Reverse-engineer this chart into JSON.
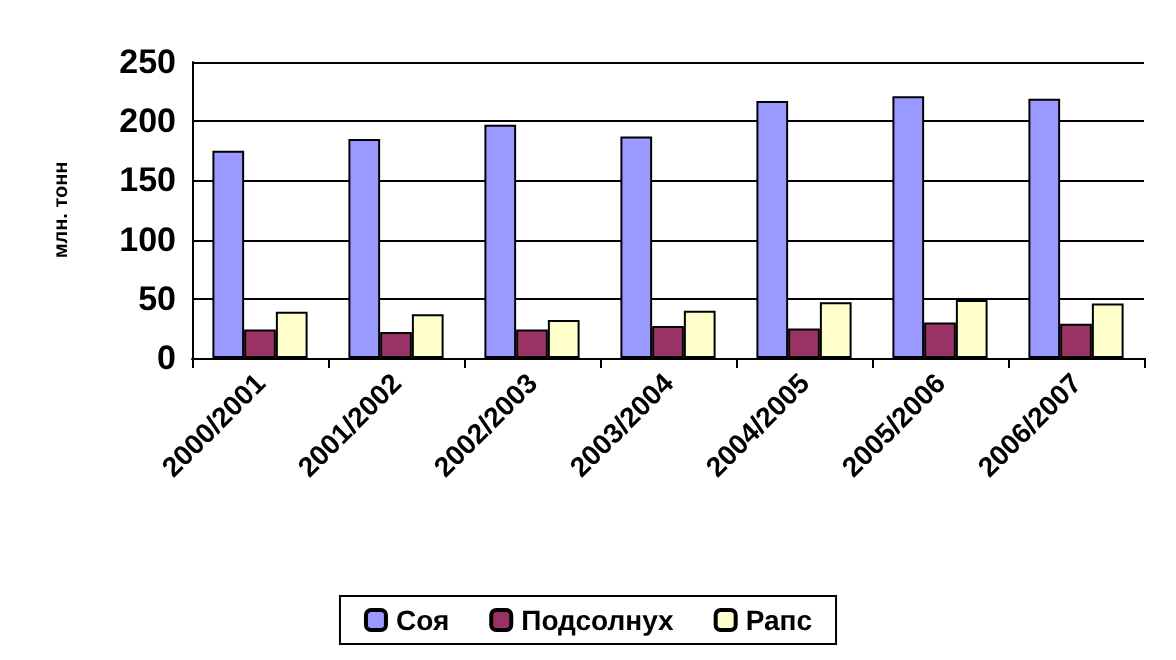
{
  "chart_data": {
    "type": "bar",
    "ylabel": "млн. тонн",
    "categories": [
      "2000/2001",
      "2001/2002",
      "2002/2003",
      "2003/2004",
      "2004/2005",
      "2005/2006",
      "2006/2007"
    ],
    "series": [
      {
        "name": "Соя",
        "color": "#9999ff",
        "values": [
          175,
          185,
          197,
          187,
          217,
          221,
          219
        ]
      },
      {
        "name": "Подсолнух",
        "color": "#993366",
        "values": [
          24,
          22,
          24,
          27,
          25,
          30,
          29
        ]
      },
      {
        "name": "Рапс",
        "color": "#ffffcc",
        "values": [
          39,
          37,
          32,
          40,
          47,
          49,
          46
        ]
      }
    ],
    "ylim": [
      0,
      250
    ],
    "yticks": [
      0,
      50,
      100,
      150,
      200,
      250
    ],
    "grid": "y",
    "legend": "bottom"
  }
}
